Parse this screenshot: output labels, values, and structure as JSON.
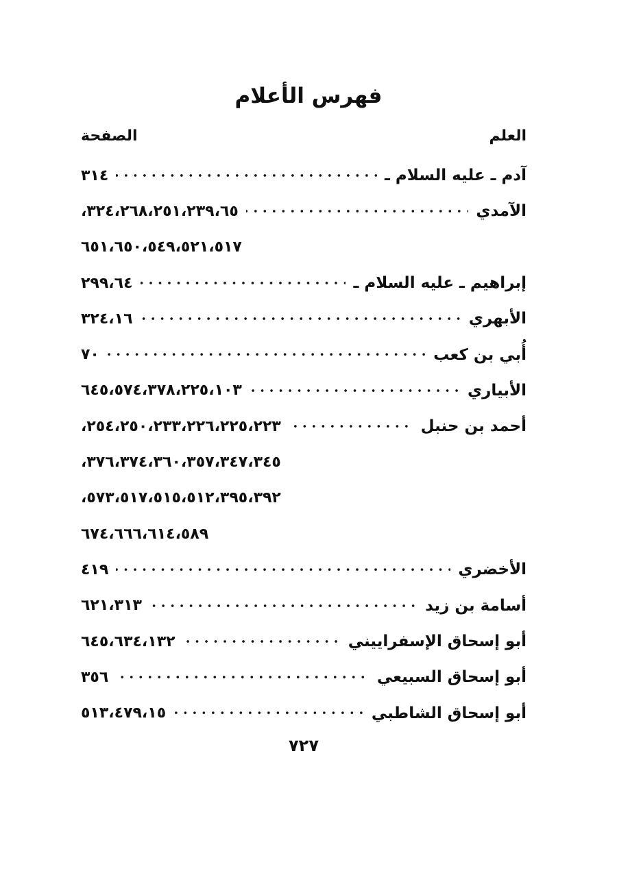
{
  "document": {
    "title": "فهرس الأعلام",
    "columns": {
      "name_header": "العلم",
      "page_header": "الصفحة"
    },
    "footer_page_number": "٧٢٧",
    "footer_page_number_western": 727
  },
  "entries": [
    {
      "type": "entry",
      "name": "آدم ـ عليه السلام ـ",
      "pages": [
        314
      ],
      "pages_visual": "٣١٤"
    },
    {
      "type": "entry",
      "name": "الآمدي",
      "pages": [
        65,
        239,
        251,
        268,
        324
      ],
      "pages_visual": "،٣٢٤،٢٦٨،٢٥١،٢٣٩،٦٥"
    },
    {
      "type": "continuation",
      "name": "",
      "pages": [
        517,
        521,
        549,
        650,
        651
      ],
      "pages_visual": "٦٥١،٦٥٠،٥٤٩،٥٢١،٥١٧"
    },
    {
      "type": "entry",
      "name": "إبراهيم ـ عليه السلام ـ",
      "pages": [
        64,
        299
      ],
      "pages_visual": "٢٩٩،٦٤"
    },
    {
      "type": "entry",
      "name": "الأبهري",
      "pages": [
        16,
        324
      ],
      "pages_visual": "٣٢٤،١٦"
    },
    {
      "type": "entry",
      "name": "أُبي بن كعب",
      "pages": [
        70
      ],
      "pages_visual": "٧٠"
    },
    {
      "type": "entry",
      "name": "الأبياري",
      "pages": [
        103,
        225,
        378,
        574,
        645
      ],
      "pages_visual": "٦٤٥،٥٧٤،٣٧٨،٢٢٥،١٠٣"
    },
    {
      "type": "entry",
      "name": "أحمد بن حنبل",
      "pages": [
        223,
        225,
        226,
        233,
        250,
        254
      ],
      "pages_visual": "،٢٥٤،٢٥٠،٢٣٣،٢٢٦،٢٢٥،٢٢٣"
    },
    {
      "type": "continuation",
      "name": "",
      "pages": [
        345,
        347,
        357,
        360,
        374,
        376
      ],
      "pages_visual": "،٣٧٦،٣٧٤،٣٦٠،٣٥٧،٣٤٧،٣٤٥"
    },
    {
      "type": "continuation",
      "name": "",
      "pages": [
        392,
        395,
        512,
        515,
        517,
        573
      ],
      "pages_visual": "،٥٧٣،٥١٧،٥١٥،٥١٢،٣٩٥،٣٩٢"
    },
    {
      "type": "continuation",
      "name": "",
      "pages": [
        589,
        614,
        666,
        674
      ],
      "pages_visual": "٦٧٤،٦٦٦،٦١٤،٥٨٩"
    },
    {
      "type": "entry",
      "name": "الأخضري",
      "pages": [
        419
      ],
      "pages_visual": "٤١٩"
    },
    {
      "type": "entry",
      "name": "أسامة بن زيد",
      "pages": [
        313,
        621
      ],
      "pages_visual": "٦٢١،٣١٣"
    },
    {
      "type": "entry",
      "name": "أبو إسحاق الإسفراييني",
      "pages": [
        132,
        634,
        645
      ],
      "pages_visual": "٦٤٥،٦٣٤،١٣٢"
    },
    {
      "type": "entry",
      "name": "أبو إسحاق السبيعي",
      "pages": [
        356
      ],
      "pages_visual": "٣٥٦"
    },
    {
      "type": "entry",
      "name": "أبو إسحاق الشاطبي",
      "pages": [
        15,
        479,
        513
      ],
      "pages_visual": "٥١٣،٤٧٩،١٥"
    }
  ]
}
